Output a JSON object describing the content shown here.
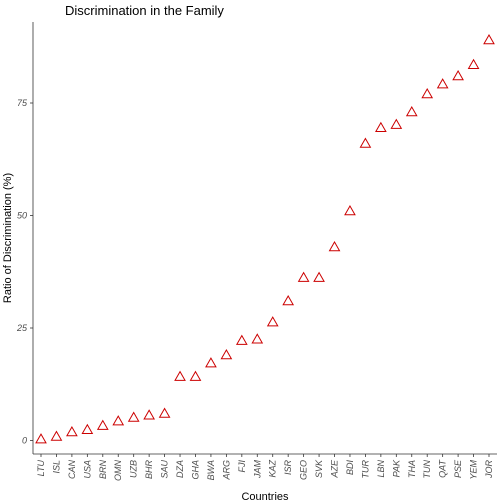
{
  "chart_data": {
    "type": "scatter",
    "title": "Discrimination in the Family",
    "xlabel": "Countries",
    "ylabel": "Ratio of Discrimination (%)",
    "ylim": [
      -3,
      93
    ],
    "yticks": [
      0,
      25,
      50,
      75
    ],
    "grid": false,
    "marker": "triangle-open",
    "marker_color": "#cc0000",
    "categories": [
      "LTU",
      "ISL",
      "CAN",
      "USA",
      "BRN",
      "OMN",
      "UZB",
      "BHR",
      "SAU",
      "DZA",
      "GHA",
      "BWA",
      "ARG",
      "FJI",
      "JAM",
      "KAZ",
      "ISR",
      "GEO",
      "SVK",
      "AZE",
      "BDI",
      "TUR",
      "LBN",
      "PAK",
      "THA",
      "TUN",
      "QAT",
      "PSE",
      "YEM",
      "JOR"
    ],
    "values": [
      0.3,
      0.9,
      1.9,
      2.4,
      3.3,
      4.3,
      5.1,
      5.6,
      6.0,
      14.2,
      14.2,
      17.2,
      19.0,
      22.2,
      22.5,
      26.3,
      31.0,
      36.2,
      36.2,
      43.0,
      51.0,
      66.0,
      69.5,
      70.2,
      73.0,
      77.0,
      79.2,
      81.0,
      83.5,
      89.0
    ]
  }
}
